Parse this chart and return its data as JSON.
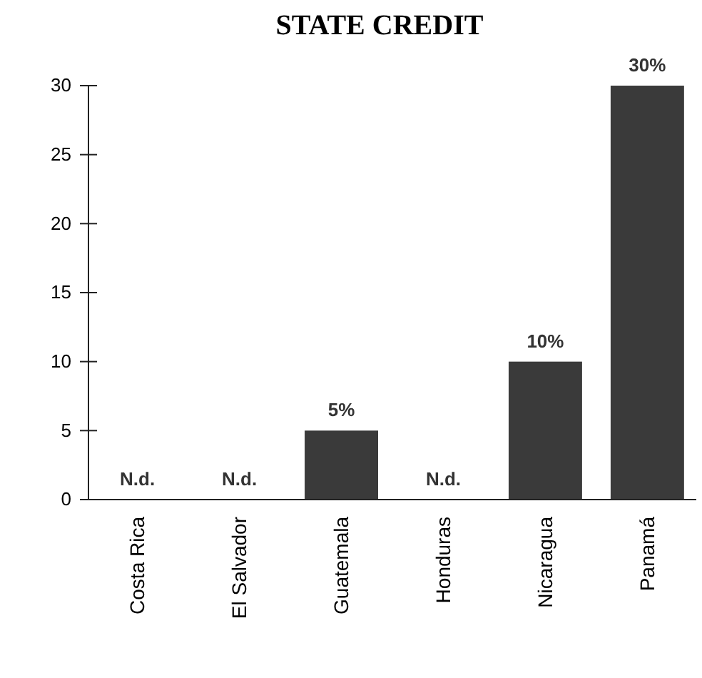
{
  "chart_data": {
    "type": "bar",
    "title": "STATE CREDIT",
    "categories": [
      "Costa Rica",
      "El Salvador",
      "Guatemala",
      "Honduras",
      "Nicaragua",
      "Panamá"
    ],
    "values": [
      null,
      null,
      5,
      null,
      10,
      30
    ],
    "value_labels": [
      "N.d.",
      "N.d.",
      "5%",
      "N.d.",
      "10%",
      "30%"
    ],
    "color": "#3a3a3a",
    "ylim": [
      0,
      30
    ],
    "yticks": [
      0,
      5,
      10,
      15,
      20,
      25,
      30
    ],
    "grid": false
  }
}
